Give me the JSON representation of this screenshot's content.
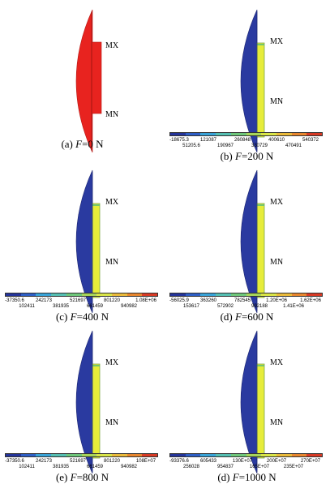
{
  "colors": {
    "red_body": "#e8231f",
    "blue_body": "#2a3aa0",
    "yellow_inner": "#e6ec3a",
    "legend": [
      "#24349a",
      "#2e5fc6",
      "#38a3d8",
      "#55bfb2",
      "#6ec77a",
      "#a6d45a",
      "#d9e548",
      "#eaba3a",
      "#e8862e",
      "#d83a25"
    ]
  },
  "panels": [
    {
      "caption_prefix": "(a) ",
      "caption_var": "F",
      "caption_value": "=0 N",
      "mx": "MX",
      "mn": "MN",
      "style": "red",
      "legend": null
    },
    {
      "caption_prefix": "(b) ",
      "caption_var": "F",
      "caption_value": "=200 N",
      "mx": "MX",
      "mn": "MN",
      "style": "blue",
      "legend": {
        "top": [
          "-18675.3",
          "121087",
          "260848",
          "400610",
          "540372"
        ],
        "bottom": [
          "51205.6",
          "190967",
          "330729",
          "470491"
        ]
      }
    },
    {
      "caption_prefix": "(c) ",
      "caption_var": "F",
      "caption_value": "=400 N",
      "mx": "MX",
      "mn": "MN",
      "style": "blue",
      "legend": {
        "top": [
          "-37350.6",
          "242173",
          "521697",
          "801220",
          "1.08E+06"
        ],
        "bottom": [
          "102411",
          "381935",
          "661459",
          "940982"
        ]
      }
    },
    {
      "caption_prefix": "(d) ",
      "caption_var": "F",
      "caption_value": "=600 N",
      "mx": "MX",
      "mn": "MN",
      "style": "blue",
      "legend": {
        "top": [
          "-56025.9",
          "363260",
          "782545",
          "1.20E+06",
          "1.62E+06"
        ],
        "bottom": [
          "153617",
          "572902",
          "992188",
          "1.41E+06"
        ]
      }
    },
    {
      "caption_prefix": "(e) ",
      "caption_var": "F",
      "caption_value": "=800 N",
      "mx": "MX",
      "mn": "MN",
      "style": "blue",
      "legend": {
        "top": [
          "-37350.6",
          "242173",
          "521697",
          "801220",
          "108E+07"
        ],
        "bottom": [
          "102411",
          "381935",
          "661459",
          "940982"
        ]
      }
    },
    {
      "caption_prefix": "(d) ",
      "caption_var": "F",
      "caption_value": "=1000 N",
      "mx": "MX",
      "mn": "MN",
      "style": "blue",
      "legend": {
        "top": [
          "-93376.6",
          "605433",
          "130E+07",
          "200E+07",
          "270E+07"
        ],
        "bottom": [
          "256028",
          "954837",
          "165E+07",
          "235E+07"
        ]
      }
    }
  ]
}
